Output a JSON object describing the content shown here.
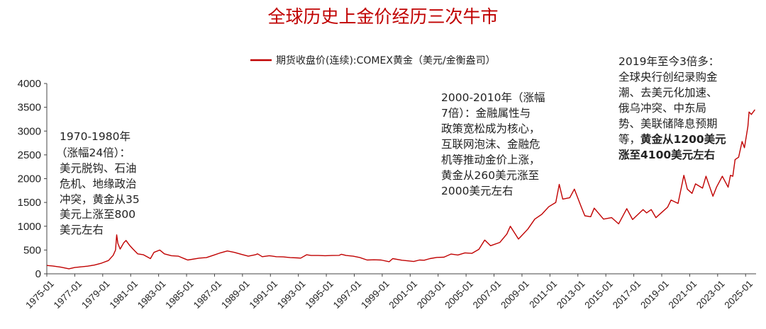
{
  "colors": {
    "title": "#c00000",
    "series": "#c00000",
    "axis": "#444444",
    "text": "#222222"
  },
  "chart_data": {
    "type": "line",
    "title": "全球历史上金价经历三次牛市",
    "legend": {
      "position": "top-center"
    },
    "xlabel": "",
    "ylabel": "",
    "ylim": [
      0,
      4000
    ],
    "y_ticks": [
      "0",
      "500",
      "1000",
      "1500",
      "2000",
      "2500",
      "3000",
      "3500",
      "4000"
    ],
    "x_tick_labels": [
      "1975-01",
      "1977-01",
      "1979-01",
      "1981-01",
      "1983-01",
      "1985-01",
      "1987-01",
      "1989-01",
      "1991-01",
      "1993-01",
      "1995-01",
      "1997-01",
      "1999-01",
      "2001-01",
      "2003-01",
      "2005-01",
      "2007-01",
      "2009-01",
      "2011-01",
      "2013-01",
      "2015-01",
      "2017-01",
      "2019-01",
      "2021-01",
      "2023-01",
      "2025-01"
    ],
    "grid": false,
    "series": [
      {
        "name": "期货收盘价(连续):COMEX黄金（美元/金衡盎司）",
        "points": [
          [
            "1975-01",
            175
          ],
          [
            "1975-06",
            165
          ],
          [
            "1976-01",
            140
          ],
          [
            "1976-08",
            105
          ],
          [
            "1977-01",
            132
          ],
          [
            "1977-12",
            160
          ],
          [
            "1978-06",
            185
          ],
          [
            "1978-12",
            225
          ],
          [
            "1979-06",
            280
          ],
          [
            "1979-10",
            390
          ],
          [
            "1979-12",
            500
          ],
          [
            "1980-01",
            820
          ],
          [
            "1980-02",
            640
          ],
          [
            "1980-04",
            520
          ],
          [
            "1980-07",
            650
          ],
          [
            "1980-09",
            700
          ],
          [
            "1980-12",
            600
          ],
          [
            "1981-03",
            520
          ],
          [
            "1981-07",
            420
          ],
          [
            "1981-12",
            400
          ],
          [
            "1982-06",
            320
          ],
          [
            "1982-09",
            450
          ],
          [
            "1983-02",
            500
          ],
          [
            "1983-06",
            420
          ],
          [
            "1983-12",
            380
          ],
          [
            "1984-06",
            370
          ],
          [
            "1984-12",
            310
          ],
          [
            "1985-02",
            290
          ],
          [
            "1985-12",
            330
          ],
          [
            "1986-06",
            340
          ],
          [
            "1986-12",
            390
          ],
          [
            "1987-06",
            440
          ],
          [
            "1987-12",
            480
          ],
          [
            "1988-06",
            450
          ],
          [
            "1988-12",
            410
          ],
          [
            "1989-06",
            370
          ],
          [
            "1989-12",
            400
          ],
          [
            "1990-02",
            420
          ],
          [
            "1990-06",
            360
          ],
          [
            "1990-12",
            380
          ],
          [
            "1991-06",
            360
          ],
          [
            "1991-12",
            355
          ],
          [
            "1992-06",
            340
          ],
          [
            "1992-12",
            335
          ],
          [
            "1993-03",
            330
          ],
          [
            "1993-08",
            400
          ],
          [
            "1993-12",
            385
          ],
          [
            "1994-06",
            385
          ],
          [
            "1994-12",
            380
          ],
          [
            "1995-06",
            385
          ],
          [
            "1995-12",
            388
          ],
          [
            "1996-02",
            410
          ],
          [
            "1996-06",
            385
          ],
          [
            "1996-12",
            370
          ],
          [
            "1997-06",
            340
          ],
          [
            "1997-12",
            290
          ],
          [
            "1998-06",
            295
          ],
          [
            "1998-12",
            290
          ],
          [
            "1999-07",
            255
          ],
          [
            "1999-10",
            320
          ],
          [
            "2000-06",
            285
          ],
          [
            "2000-12",
            270
          ],
          [
            "2001-04",
            258
          ],
          [
            "2001-09",
            290
          ],
          [
            "2002-01",
            285
          ],
          [
            "2002-06",
            320
          ],
          [
            "2002-12",
            345
          ],
          [
            "2003-06",
            350
          ],
          [
            "2003-12",
            415
          ],
          [
            "2004-06",
            395
          ],
          [
            "2004-12",
            440
          ],
          [
            "2005-06",
            430
          ],
          [
            "2005-12",
            515
          ],
          [
            "2006-05",
            710
          ],
          [
            "2006-10",
            590
          ],
          [
            "2007-06",
            660
          ],
          [
            "2007-12",
            835
          ],
          [
            "2008-03",
            1000
          ],
          [
            "2008-10",
            730
          ],
          [
            "2009-06",
            940
          ],
          [
            "2009-12",
            1150
          ],
          [
            "2010-06",
            1250
          ],
          [
            "2010-12",
            1410
          ],
          [
            "2011-06",
            1500
          ],
          [
            "2011-09",
            1880
          ],
          [
            "2011-12",
            1570
          ],
          [
            "2012-06",
            1600
          ],
          [
            "2012-10",
            1780
          ],
          [
            "2013-04",
            1400
          ],
          [
            "2013-07",
            1220
          ],
          [
            "2013-12",
            1200
          ],
          [
            "2014-03",
            1380
          ],
          [
            "2014-11",
            1150
          ],
          [
            "2015-06",
            1180
          ],
          [
            "2015-12",
            1050
          ],
          [
            "2016-07",
            1370
          ],
          [
            "2016-12",
            1140
          ],
          [
            "2017-09",
            1350
          ],
          [
            "2017-12",
            1280
          ],
          [
            "2018-04",
            1350
          ],
          [
            "2018-08",
            1180
          ],
          [
            "2019-01",
            1290
          ],
          [
            "2019-06",
            1400
          ],
          [
            "2019-09",
            1550
          ],
          [
            "2020-03",
            1480
          ],
          [
            "2020-08",
            2070
          ],
          [
            "2020-11",
            1780
          ],
          [
            "2021-03",
            1690
          ],
          [
            "2021-06",
            1890
          ],
          [
            "2021-12",
            1800
          ],
          [
            "2022-03",
            2050
          ],
          [
            "2022-09",
            1630
          ],
          [
            "2022-12",
            1820
          ],
          [
            "2023-05",
            2050
          ],
          [
            "2023-10",
            1820
          ],
          [
            "2023-12",
            2070
          ],
          [
            "2024-02",
            2050
          ],
          [
            "2024-04",
            2400
          ],
          [
            "2024-07",
            2450
          ],
          [
            "2024-10",
            2780
          ],
          [
            "2024-12",
            2650
          ],
          [
            "2025-03",
            3100
          ],
          [
            "2025-04",
            3400
          ],
          [
            "2025-06",
            3350
          ],
          [
            "2025-09",
            3450
          ]
        ]
      }
    ],
    "annotations": [
      {
        "lines": [
          {
            "text": "1970-1980年"
          },
          {
            "text": "（涨幅24倍）："
          },
          {
            "text": "美元脱钩、石油"
          },
          {
            "text": "危机、地缘政治"
          },
          {
            "text": "冲突，黄金从35"
          },
          {
            "text": "美元上涨至800"
          },
          {
            "text": "美元左右"
          }
        ]
      },
      {
        "lines": [
          {
            "text": "2000-2010年（涨幅"
          },
          {
            "text": "7倍）：金融属性与"
          },
          {
            "text": "政策宽松成为核心，"
          },
          {
            "text": "互联网泡沫、金融危"
          },
          {
            "text": "机等推动金价上涨，"
          },
          {
            "text": "黄金从260美元涨至"
          },
          {
            "text": "2000美元左右"
          }
        ]
      },
      {
        "lines": [
          {
            "text": "2019年至今3倍多："
          },
          {
            "text": "全球央行创纪录购金"
          },
          {
            "text": "潮、去美元化加速、"
          },
          {
            "text": "俄乌冲突、中东局"
          },
          {
            "text": "势、美联储降息预期"
          },
          {
            "text": "等，",
            "bold_tail": "黄金从1200美元"
          },
          {
            "text": "",
            "bold_tail": "涨至4100美元左右"
          }
        ]
      }
    ]
  }
}
